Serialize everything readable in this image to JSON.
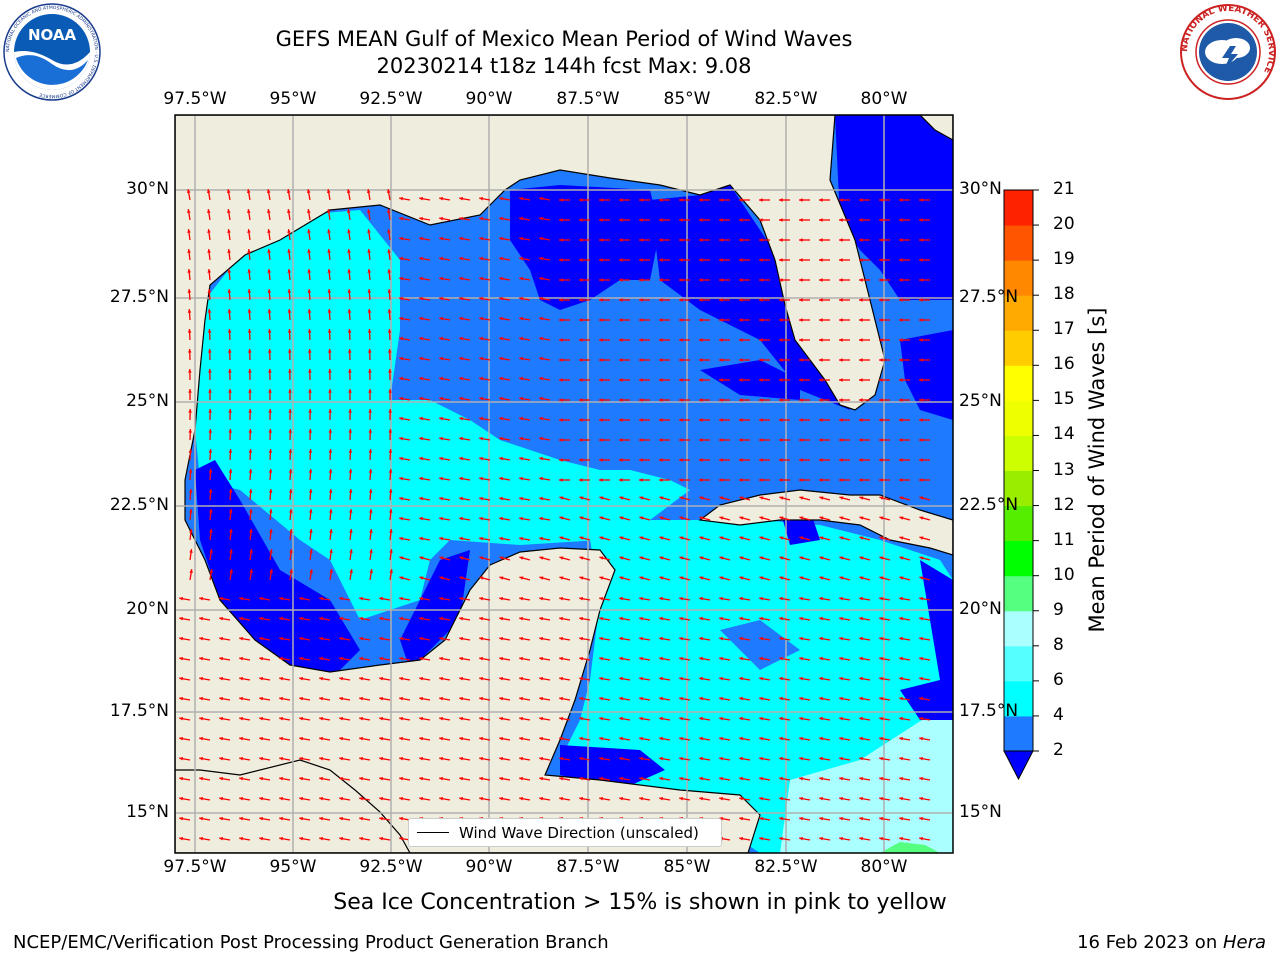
{
  "header": {
    "title_line1": "GEFS MEAN Gulf of Mexico Mean Period of Wind Waves",
    "title_line2": "20230214 t18z 144h fcst   Max: 9.08"
  },
  "logos": {
    "left": "NOAA",
    "left_ring": "NATIONAL OCEANIC AND ATMOSPHERIC ADMINISTRATION · U.S. DEPARTMENT OF COMMERCE",
    "right_ring": "NATIONAL WEATHER SERVICE"
  },
  "map": {
    "lon_labels": [
      "97.5°W",
      "95°W",
      "92.5°W",
      "90°W",
      "87.5°W",
      "85°W",
      "82.5°W",
      "80°W"
    ],
    "lat_labels": [
      "30°N",
      "27.5°N",
      "25°N",
      "22.5°N",
      "20°N",
      "17.5°N",
      "15°N"
    ],
    "colors": {
      "land": "#efedde",
      "ocean_low": "#0000ff",
      "ocean_2_4": "#1e7bff",
      "ocean_4_6": "#00ffff",
      "ocean_6_8": "#55ffff",
      "ocean_8_9": "#aaffff",
      "ocean_9_10": "#55ff80",
      "arrow": "#ff0000",
      "grid": "#b0b0b0"
    },
    "legend_label": "Wind Wave Direction (unscaled)"
  },
  "colorbar": {
    "title": "Mean Period of Wind Waves [s]",
    "ticks": [
      2,
      4,
      6,
      8,
      9,
      10,
      11,
      12,
      13,
      14,
      15,
      16,
      17,
      18,
      19,
      20,
      21
    ],
    "colors": [
      "#1e7bff",
      "#00ffff",
      "#55ffff",
      "#aaffff",
      "#55ff80",
      "#00ff00",
      "#55ee00",
      "#99ee00",
      "#ccff00",
      "#eeff00",
      "#ffff00",
      "#ffcc00",
      "#ffaa00",
      "#ff8800",
      "#ff5500",
      "#ff2200"
    ],
    "under_color": "#0000ff"
  },
  "caption": "Sea Ice Concentration > 15% is shown in pink to yellow",
  "footer": {
    "left": "NCEP/EMC/Verification Post Processing Product Generation Branch",
    "right_date": "16 Feb 2023 on ",
    "right_machine": "Hera"
  }
}
